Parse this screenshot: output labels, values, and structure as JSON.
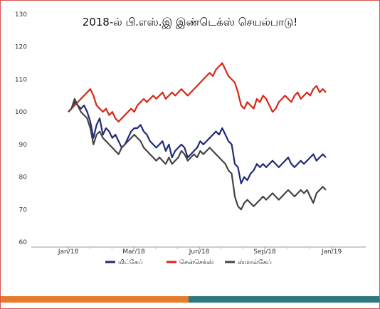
{
  "chart_data": {
    "type": "line",
    "title": "2018-ல் பி.எஸ்.இ இண்டெக்ஸ் செயல்பாடு!",
    "xlabel": "",
    "ylabel": "",
    "ylim": [
      60,
      130
    ],
    "yticks": [
      60,
      70,
      80,
      90,
      100,
      110,
      120,
      130
    ],
    "xticks": [
      "Jan/18",
      "Mar/18",
      "Jun/18",
      "Sep/18",
      "Jan/19"
    ],
    "grid": false,
    "legend_position": "bottom",
    "x": [
      0,
      1,
      2,
      3,
      4,
      5,
      6,
      7,
      8,
      9,
      10,
      11,
      12,
      13,
      14,
      15,
      16,
      17,
      18,
      19,
      20,
      21,
      22,
      23,
      24,
      25,
      26,
      27,
      28,
      29,
      30,
      31,
      32,
      33,
      34,
      35,
      36,
      37,
      38,
      39,
      40,
      41,
      42,
      43,
      44,
      45,
      46,
      47,
      48,
      49,
      50,
      51,
      52,
      53,
      54,
      55,
      56,
      57,
      58,
      59,
      60,
      61,
      62,
      63,
      64,
      65,
      66,
      67,
      68,
      69,
      70,
      71,
      72,
      73,
      74,
      75,
      76,
      77,
      78,
      79,
      80,
      81,
      82
    ],
    "series": [
      {
        "name": "மிட்கேப்",
        "color": "#1f2a7a",
        "values": [
          100,
          101,
          103,
          102,
          101,
          102,
          100,
          97,
          92,
          96,
          98,
          93,
          95,
          94,
          92,
          93,
          91,
          89,
          90,
          92,
          94,
          95,
          95,
          96,
          94,
          93,
          91,
          90,
          89,
          90,
          91,
          88,
          90,
          86,
          88,
          89,
          90,
          89,
          86,
          87,
          88,
          89,
          91,
          90,
          91,
          92,
          93,
          94,
          93,
          95,
          93,
          91,
          90,
          84,
          83,
          78,
          80,
          79,
          81,
          82,
          84,
          83,
          84,
          83,
          84,
          85,
          84,
          83,
          84,
          85,
          86,
          84,
          83,
          84,
          85,
          84,
          85,
          86,
          87,
          85,
          86,
          87,
          86
        ]
      },
      {
        "name": "சென்செக்ஸ்",
        "color": "#d62718",
        "values": [
          100,
          101,
          102,
          103,
          104,
          105,
          106,
          107,
          105,
          102,
          101,
          100,
          101,
          99,
          100,
          98,
          97,
          98,
          99,
          100,
          101,
          100,
          102,
          103,
          104,
          103,
          104,
          105,
          104,
          105,
          106,
          104,
          105,
          106,
          105,
          106,
          107,
          106,
          105,
          106,
          107,
          108,
          109,
          110,
          111,
          112,
          111,
          113,
          114,
          115,
          113,
          111,
          110,
          109,
          106,
          102,
          101,
          103,
          102,
          101,
          104,
          103,
          105,
          104,
          102,
          100,
          101,
          103,
          104,
          105,
          104,
          103,
          105,
          106,
          104,
          105,
          106,
          105,
          107,
          108,
          106,
          107,
          106
        ]
      },
      {
        "name": "ஸ்மால்கேப்",
        "color": "#444444",
        "values": [
          100,
          101,
          104,
          102,
          100,
          99,
          98,
          95,
          90,
          93,
          94,
          92,
          91,
          90,
          89,
          88,
          87,
          89,
          90,
          91,
          92,
          93,
          92,
          91,
          89,
          88,
          87,
          86,
          85,
          86,
          85,
          84,
          86,
          84,
          85,
          86,
          88,
          87,
          85,
          86,
          87,
          86,
          88,
          87,
          88,
          89,
          88,
          87,
          86,
          85,
          84,
          82,
          81,
          74,
          71,
          70,
          72,
          73,
          72,
          71,
          72,
          73,
          74,
          73,
          74,
          75,
          74,
          73,
          74,
          75,
          76,
          75,
          74,
          75,
          76,
          75,
          76,
          74,
          72,
          75,
          76,
          77,
          76
        ]
      }
    ]
  },
  "colors": {
    "frame": "#d9534f",
    "bottom_bar_left": "#e8782a",
    "bottom_bar_right": "#2c7a80"
  }
}
